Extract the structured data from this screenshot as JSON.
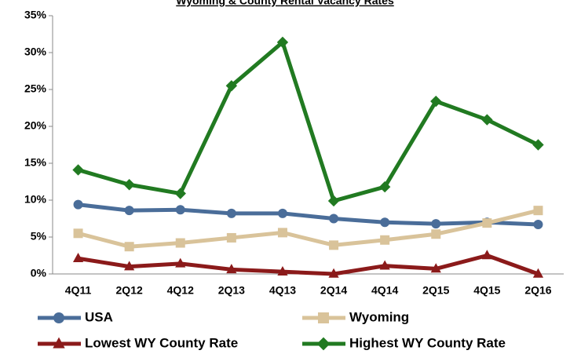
{
  "chart_data": {
    "type": "line",
    "title": "Wyoming & County Rental Vacancy Rates",
    "categories": [
      "4Q11",
      "2Q12",
      "4Q12",
      "2Q13",
      "4Q13",
      "2Q14",
      "4Q14",
      "2Q15",
      "4Q15",
      "2Q16"
    ],
    "series": [
      {
        "name": "USA",
        "color": "#4a6d99",
        "marker": "circle",
        "values": [
          9.4,
          8.6,
          8.7,
          8.2,
          8.2,
          7.5,
          7.0,
          6.8,
          7.0,
          6.7
        ]
      },
      {
        "name": "Wyoming",
        "color": "#d9c39a",
        "marker": "square",
        "values": [
          5.5,
          3.7,
          4.2,
          4.9,
          5.6,
          3.9,
          4.6,
          5.4,
          6.9,
          8.6
        ]
      },
      {
        "name": "Lowest WY County Rate",
        "color": "#8b1a1a",
        "marker": "triangle",
        "values": [
          2.1,
          1.0,
          1.4,
          0.6,
          0.3,
          0.0,
          1.1,
          0.7,
          2.5,
          0.0
        ]
      },
      {
        "name": "Highest WY County Rate",
        "color": "#217a21",
        "marker": "diamond",
        "values": [
          14.1,
          12.1,
          10.9,
          25.5,
          31.4,
          9.9,
          11.8,
          23.4,
          20.9,
          17.5
        ]
      }
    ],
    "ylim": [
      0,
      35
    ],
    "yticks": [
      {
        "value": 0,
        "label": "0%"
      },
      {
        "value": 5,
        "label": "5%"
      },
      {
        "value": 10,
        "label": "10%"
      },
      {
        "value": 15,
        "label": "15%"
      },
      {
        "value": 20,
        "label": "20%"
      },
      {
        "value": 25,
        "label": "25%"
      },
      {
        "value": 30,
        "label": "30%"
      },
      {
        "value": 35,
        "label": "35%"
      }
    ],
    "grid": false
  }
}
